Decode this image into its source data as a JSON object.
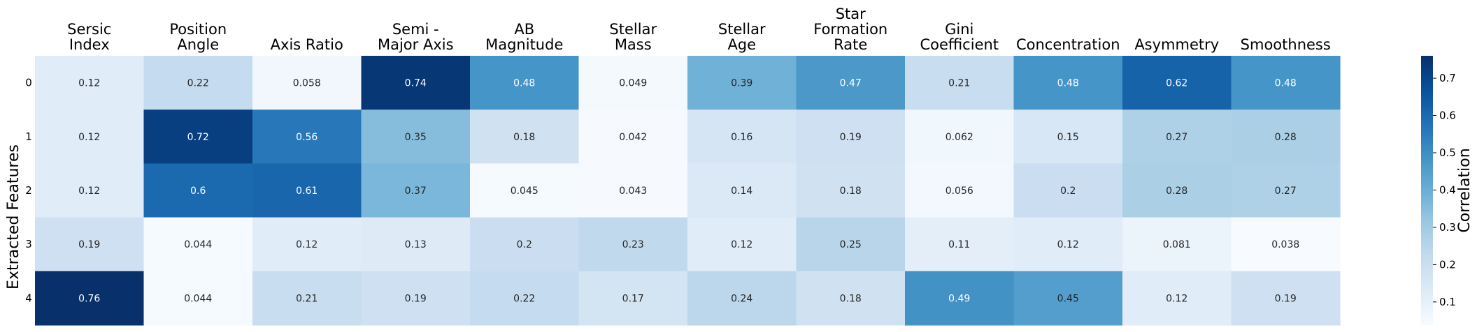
{
  "chart_data": {
    "type": "heatmap",
    "columns": [
      [
        "Sersic",
        "Index"
      ],
      [
        "Position",
        "Angle"
      ],
      [
        "Axis Ratio"
      ],
      [
        "Semi -",
        "Major Axis"
      ],
      [
        "AB",
        "Magnitude"
      ],
      [
        "Stellar",
        "Mass"
      ],
      [
        "Stellar",
        "Age"
      ],
      [
        "Star",
        "Formation",
        "Rate"
      ],
      [
        "Gini",
        "Coefficient"
      ],
      [
        "Concentration"
      ],
      [
        "Asymmetry"
      ],
      [
        "Smoothness"
      ]
    ],
    "rows": [
      "0",
      "1",
      "2",
      "3",
      "4"
    ],
    "values": [
      [
        0.12,
        0.22,
        0.058,
        0.74,
        0.48,
        0.049,
        0.39,
        0.47,
        0.21,
        0.48,
        0.62,
        0.48
      ],
      [
        0.12,
        0.72,
        0.56,
        0.35,
        0.18,
        0.042,
        0.16,
        0.19,
        0.062,
        0.15,
        0.27,
        0.28
      ],
      [
        0.12,
        0.6,
        0.61,
        0.37,
        0.045,
        0.043,
        0.14,
        0.18,
        0.056,
        0.2,
        0.28,
        0.27
      ],
      [
        0.19,
        0.044,
        0.12,
        0.13,
        0.2,
        0.23,
        0.12,
        0.25,
        0.11,
        0.12,
        0.081,
        0.038
      ],
      [
        0.76,
        0.044,
        0.21,
        0.19,
        0.22,
        0.17,
        0.24,
        0.18,
        0.49,
        0.45,
        0.12,
        0.19
      ]
    ],
    "ylabel": "Extracted Features",
    "colorbar": {
      "label": "Correlation",
      "range": [
        0.038,
        0.76
      ],
      "ticks": [
        0.1,
        0.2,
        0.3,
        0.4,
        0.5,
        0.6,
        0.7
      ]
    },
    "colormap": "Blues",
    "annotated": true
  }
}
